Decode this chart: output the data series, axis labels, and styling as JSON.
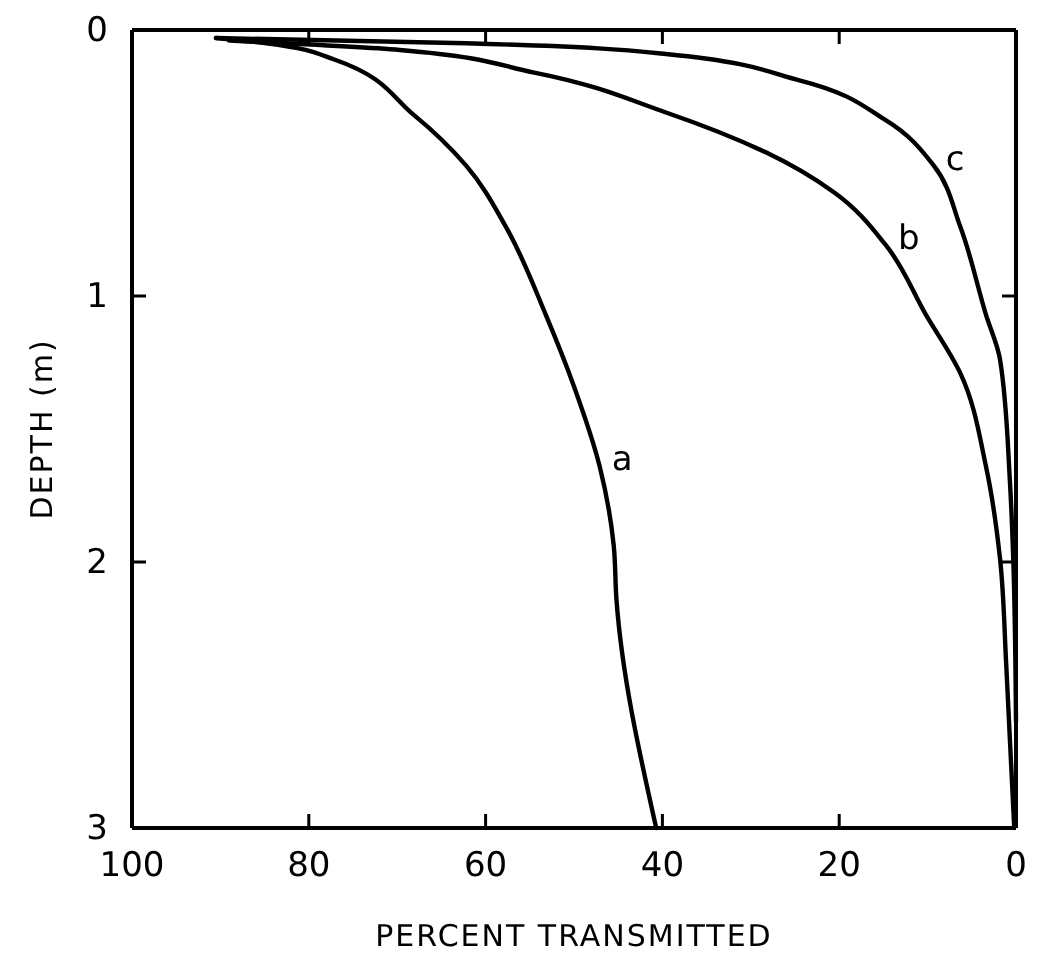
{
  "chart_data": {
    "type": "line",
    "xlabel": "PERCENT TRANSMITTED",
    "ylabel": "DEPTH (m)",
    "xlim": [
      100,
      0
    ],
    "xticks": [
      100,
      80,
      60,
      40,
      20,
      0
    ],
    "ylim": [
      3,
      0
    ],
    "yticks": [
      0,
      1,
      2,
      3
    ],
    "grid": false,
    "marker": "none",
    "line_style": "solid",
    "series": [
      {
        "color": "#000000",
        "x": [
          90.5,
          84.8,
          77.2,
          68.1,
          62.2,
          57.7,
          53.2,
          50.0,
          47.1,
          45.5,
          45.2,
          40.7
        ],
        "values": [
          0.03,
          0.05,
          0.11,
          0.32,
          0.51,
          0.74,
          1.07,
          1.34,
          1.64,
          1.94,
          2.14,
          3.0
        ]
      },
      {
        "color": "#000000",
        "x": [
          89.0,
          69.7,
          54.5,
          39.6,
          28.3,
          20.6,
          14.7,
          10.2,
          6.3,
          3.4,
          1.8,
          1.1,
          0.2
        ],
        "values": [
          0.04,
          0.075,
          0.16,
          0.31,
          0.46,
          0.61,
          0.81,
          1.07,
          1.29,
          1.64,
          1.99,
          2.39,
          3.0
        ]
      },
      {
        "color": "#000000",
        "x": [
          90.5,
          62.2,
          39.6,
          24.4,
          14.7,
          9.3,
          6.3,
          3.4,
          1.8,
          0.7,
          0.3,
          0
        ],
        "values": [
          0.03,
          0.05,
          0.09,
          0.19,
          0.34,
          0.51,
          0.74,
          1.07,
          1.24,
          1.69,
          2.0,
          2.6
        ]
      }
    ],
    "annotations": [
      {
        "text": "a",
        "x": 47.1,
        "y": 1.64
      },
      {
        "text": "b",
        "x": 14.7,
        "y": 0.81
      },
      {
        "text": "c",
        "x": 9.3,
        "y": 0.51
      }
    ]
  }
}
